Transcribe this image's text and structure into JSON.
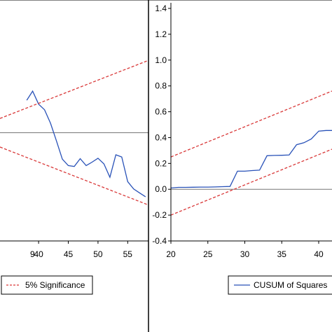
{
  "chart_data": [
    {
      "type": "line",
      "title": "",
      "xlabel": "",
      "ylabel": "",
      "x_range": [
        33.5,
        58.5
      ],
      "y_range": [
        -25,
        30
      ],
      "x_tick_labels": [
        "40",
        "45",
        "50",
        "55"
      ],
      "x_tick_values": [
        40,
        45,
        50,
        55
      ],
      "partial_tick_label": "9",
      "partial_tick_value": 39,
      "grid": false,
      "series": [
        {
          "name": "",
          "color": "#2952b8",
          "style": "solid",
          "x": [
            38,
            39,
            40,
            41,
            42,
            43,
            44,
            45,
            46,
            47,
            48,
            49,
            50,
            51,
            52,
            53,
            54,
            55,
            56,
            57,
            58
          ],
          "y": [
            7.5,
            9.6,
            6.6,
            5.3,
            2.2,
            -1.9,
            -6.1,
            -7.6,
            -7.8,
            -6.0,
            -7.6,
            -6.8,
            -5.9,
            -7.2,
            -10.3,
            -5.1,
            -5.6,
            -11.3,
            -13.0,
            -13.9,
            -14.8
          ]
        },
        {
          "name": "",
          "color": "#d93838",
          "style": "dashed",
          "x": [
            33.5,
            58.5
          ],
          "y": [
            3.3,
            16.7
          ]
        },
        {
          "name": "",
          "color": "#d93838",
          "style": "dashed",
          "x": [
            33.5,
            58.5
          ],
          "y": [
            -3.3,
            -16.7
          ]
        }
      ],
      "zero_line": 0,
      "zero_line_color": "#777777",
      "legend": {
        "placement": "bottom-center",
        "entries": [
          {
            "label": "5% Significance",
            "color": "#d93838",
            "style": "dashed"
          }
        ]
      }
    },
    {
      "type": "line",
      "title": "",
      "xlabel": "",
      "ylabel": "",
      "x_range": [
        20,
        41.8
      ],
      "y_range": [
        -0.4,
        1.4
      ],
      "x_tick_labels": [
        "20",
        "25",
        "30",
        "35",
        "40"
      ],
      "x_tick_values": [
        20,
        25,
        30,
        35,
        40
      ],
      "y_tick_labels": [
        "-0.4",
        "-0.2",
        "0.0",
        "0.2",
        "0.4",
        "0.6",
        "0.8",
        "1.0",
        "1.2",
        "1.4"
      ],
      "y_tick_values": [
        -0.4,
        -0.2,
        0.0,
        0.2,
        0.4,
        0.6,
        0.8,
        1.0,
        1.2,
        1.4
      ],
      "grid": false,
      "series": [
        {
          "name": "",
          "color": "#2952b8",
          "style": "solid",
          "x": [
            20,
            21,
            22,
            23,
            24,
            25,
            26,
            27,
            28,
            29,
            30,
            31,
            32,
            33,
            34,
            35,
            36,
            37,
            38,
            39,
            40,
            41,
            41.8
          ],
          "y": [
            0.01,
            0.015,
            0.015,
            0.016,
            0.017,
            0.017,
            0.018,
            0.02,
            0.022,
            0.14,
            0.14,
            0.145,
            0.148,
            0.26,
            0.262,
            0.263,
            0.265,
            0.345,
            0.36,
            0.39,
            0.45,
            0.455,
            0.455
          ]
        },
        {
          "name": "",
          "color": "#d93838",
          "style": "dashed",
          "x": [
            20,
            41.8
          ],
          "y": [
            0.25,
            0.76
          ]
        },
        {
          "name": "",
          "color": "#d93838",
          "style": "dashed",
          "x": [
            20,
            41.8
          ],
          "y": [
            -0.2,
            0.31
          ]
        }
      ],
      "zero_line": 0,
      "zero_line_color": "#777777",
      "legend": {
        "placement": "bottom-center",
        "entries": [
          {
            "label": "CUSUM of Squares",
            "color": "#2952b8",
            "style": "solid"
          }
        ]
      }
    }
  ]
}
